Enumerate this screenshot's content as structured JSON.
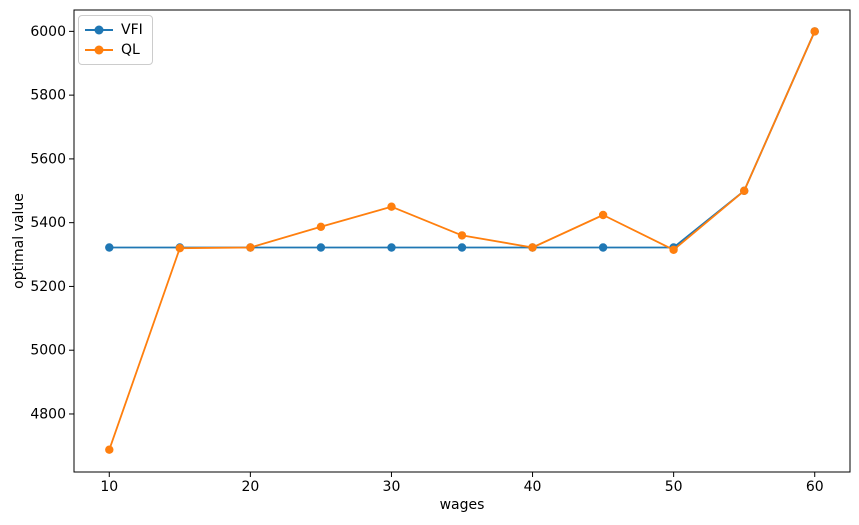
{
  "chart_data": {
    "type": "line",
    "title": "",
    "xlabel": "wages",
    "ylabel": "optimal value",
    "x": [
      10,
      15,
      20,
      25,
      30,
      35,
      40,
      45,
      50,
      55,
      60
    ],
    "series": [
      {
        "name": "VFI",
        "color": "#1f77b4",
        "marker": "circle",
        "values": [
          5322,
          5322,
          5322,
          5322,
          5322,
          5322,
          5322,
          5322,
          5322,
          5500,
          6000
        ]
      },
      {
        "name": "QL",
        "color": "#ff7f0e",
        "marker": "circle",
        "values": [
          4688,
          5320,
          5322,
          5387,
          5450,
          5360,
          5322,
          5424,
          5315,
          5500,
          6000
        ]
      }
    ],
    "xticks": [
      10,
      20,
      30,
      40,
      50,
      60
    ],
    "yticks": [
      4800,
      5000,
      5200,
      5400,
      5600,
      5800,
      6000
    ],
    "xlim": [
      7.5,
      62.5
    ],
    "ylim": [
      4618,
      6067
    ],
    "grid": false,
    "legend_position": "upper left",
    "axis_color": "#000000",
    "background_color": "#ffffff"
  }
}
